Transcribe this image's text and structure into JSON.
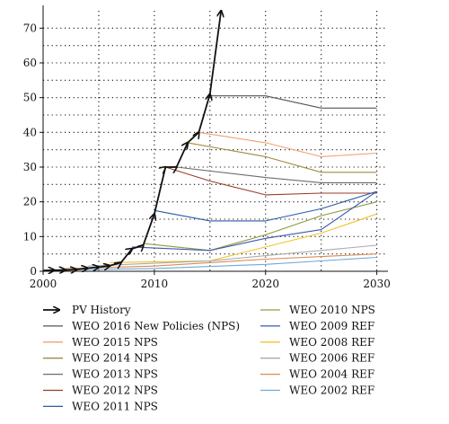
{
  "chart_data": {
    "type": "line",
    "title": "",
    "xlabel": "",
    "ylabel": "",
    "xlim": [
      2000,
      2031
    ],
    "ylim": [
      0,
      75
    ],
    "x_ticks": [
      2000,
      2010,
      2020,
      2030
    ],
    "y_ticks": [
      0,
      10,
      20,
      30,
      40,
      50,
      60,
      70
    ],
    "grid": "dotted",
    "legend_position": "bottom",
    "series": [
      {
        "name": "PV History",
        "color": "#111111",
        "style": "history",
        "x": [
          2000,
          2001,
          2002,
          2003,
          2004,
          2005,
          2006,
          2007,
          2008,
          2009,
          2010,
          2011,
          2012,
          2013,
          2014,
          2015,
          2016
        ],
        "y": [
          0.2,
          0.3,
          0.4,
          0.5,
          0.9,
          1.2,
          1.6,
          2.5,
          6.5,
          7.5,
          16.5,
          30,
          30,
          37,
          40,
          51,
          75
        ]
      },
      {
        "name": "WEO 2016 New Policies (NPS)",
        "color": "#555555",
        "x": [
          2015,
          2020,
          2025,
          2030
        ],
        "y": [
          50.5,
          50.5,
          47,
          47
        ]
      },
      {
        "name": "WEO 2015 NPS",
        "color": "#f0a070",
        "x": [
          2014,
          2020,
          2025,
          2030
        ],
        "y": [
          40,
          37,
          33,
          34
        ]
      },
      {
        "name": "WEO 2014 NPS",
        "color": "#a08a3c",
        "x": [
          2013,
          2020,
          2025,
          2030
        ],
        "y": [
          37,
          33,
          28.5,
          28.5
        ]
      },
      {
        "name": "WEO 2013 NPS",
        "color": "#6d6d6d",
        "x": [
          2012,
          2020,
          2025,
          2030
        ],
        "y": [
          30,
          27,
          25.5,
          25.5
        ]
      },
      {
        "name": "WEO 2012 NPS",
        "color": "#9a3b2c",
        "x": [
          2011,
          2015,
          2020,
          2025,
          2030
        ],
        "y": [
          30,
          26,
          22,
          22.5,
          22.5
        ]
      },
      {
        "name": "WEO 2011 NPS",
        "color": "#2e5aa8",
        "x": [
          2010,
          2015,
          2020,
          2025,
          2030
        ],
        "y": [
          17.5,
          14.5,
          14.5,
          18,
          23
        ]
      },
      {
        "name": "WEO 2010 NPS",
        "color": "#8f9a40",
        "x": [
          2009,
          2015,
          2020,
          2025,
          2030
        ],
        "y": [
          8,
          6,
          10.5,
          16,
          20
        ]
      },
      {
        "name": "WEO 2009 REF",
        "color": "#3a58b0",
        "x": [
          2008,
          2015,
          2020,
          2025,
          2030
        ],
        "y": [
          7,
          6,
          9.5,
          12,
          23
        ]
      },
      {
        "name": "WEO 2008 REF",
        "color": "#f2c230",
        "x": [
          2006,
          2015,
          2020,
          2025,
          2030
        ],
        "y": [
          2.5,
          3,
          7,
          11,
          16.5
        ]
      },
      {
        "name": "WEO 2006 REF",
        "color": "#aaaaaa",
        "x": [
          2004,
          2015,
          2020,
          2025,
          2030
        ],
        "y": [
          1.5,
          3,
          4.5,
          6,
          7.5
        ]
      },
      {
        "name": "WEO 2004 REF",
        "color": "#d98a55",
        "x": [
          2002,
          2010,
          2020,
          2030
        ],
        "y": [
          0.8,
          1.5,
          3.5,
          5
        ]
      },
      {
        "name": "WEO 2002 REF",
        "color": "#6fa8dc",
        "x": [
          2000,
          2010,
          2020,
          2030
        ],
        "y": [
          0.3,
          0.8,
          2,
          4
        ]
      }
    ]
  }
}
